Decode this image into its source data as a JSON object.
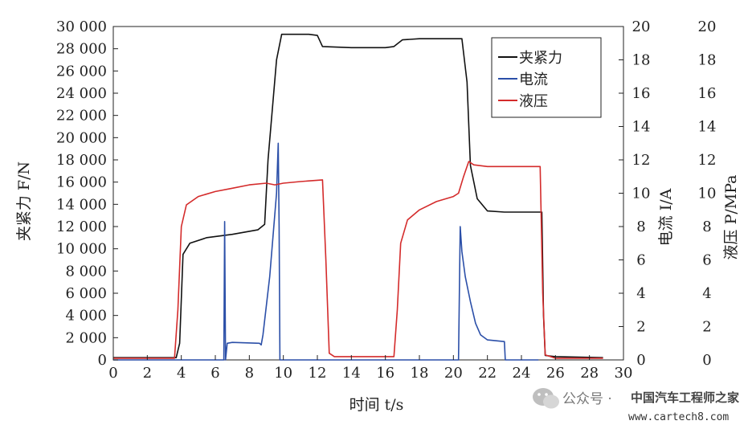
{
  "chart_data": {
    "type": "line",
    "xlabel": "时间 t/s",
    "ylabel_left": "夹紧力 F/N",
    "ylabel_right1": "电流 I/A",
    "ylabel_right2": "液压 P/MPa",
    "xlim": [
      0,
      30
    ],
    "ylim_left": [
      0,
      30000
    ],
    "ylim_right1": [
      0,
      20
    ],
    "ylim_right2": [
      0,
      20
    ],
    "xticks": [
      "0",
      "2",
      "4",
      "6",
      "8",
      "10",
      "12",
      "14",
      "16",
      "18",
      "20",
      "22",
      "24",
      "26",
      "28",
      "30"
    ],
    "yticks_left": [
      "0",
      "2 000",
      "4 000",
      "6 000",
      "8 000",
      "10 000",
      "12 000",
      "14 000",
      "16 000",
      "18 000",
      "20 000",
      "22 000",
      "24 000",
      "26 000",
      "28 000",
      "30 000"
    ],
    "yticks_right1": [
      "0",
      "2",
      "4",
      "6",
      "8",
      "10",
      "12",
      "14",
      "16",
      "18",
      "20"
    ],
    "yticks_right2": [
      "0",
      "2",
      "4",
      "6",
      "8",
      "10",
      "12",
      "14",
      "16",
      "18",
      "20"
    ],
    "grid": false,
    "legend": "top-right",
    "series": [
      {
        "name": "夹紧力",
        "color": "#111111",
        "axis": "left",
        "points": [
          [
            0,
            200
          ],
          [
            3.7,
            200
          ],
          [
            3.9,
            1500
          ],
          [
            4.1,
            9500
          ],
          [
            4.5,
            10500
          ],
          [
            5.5,
            11000
          ],
          [
            7,
            11300
          ],
          [
            8.5,
            11700
          ],
          [
            8.9,
            12200
          ],
          [
            9.1,
            18000
          ],
          [
            9.6,
            27000
          ],
          [
            9.9,
            29300
          ],
          [
            11.5,
            29300
          ],
          [
            12,
            29200
          ],
          [
            12.3,
            28200
          ],
          [
            14,
            28100
          ],
          [
            15,
            28100
          ],
          [
            16,
            28100
          ],
          [
            16.5,
            28200
          ],
          [
            17,
            28800
          ],
          [
            18,
            28900
          ],
          [
            19,
            28900
          ],
          [
            20.5,
            28900
          ],
          [
            20.8,
            25000
          ],
          [
            21,
            17500
          ],
          [
            21.4,
            14500
          ],
          [
            22,
            13400
          ],
          [
            23,
            13300
          ],
          [
            25.2,
            13300
          ],
          [
            25.3,
            4000
          ],
          [
            25.4,
            400
          ],
          [
            26,
            300
          ],
          [
            28.8,
            200
          ]
        ]
      },
      {
        "name": "电流",
        "color": "#2b4fa8",
        "axis": "right1",
        "points": [
          [
            0,
            0
          ],
          [
            6.5,
            0
          ],
          [
            6.55,
            8.3
          ],
          [
            6.6,
            0
          ],
          [
            6.7,
            1
          ],
          [
            7,
            1.05
          ],
          [
            8.6,
            1
          ],
          [
            8.7,
            0.9
          ],
          [
            8.8,
            1.5
          ],
          [
            9.2,
            5
          ],
          [
            9.6,
            10
          ],
          [
            9.7,
            13
          ],
          [
            9.75,
            8
          ],
          [
            9.8,
            0
          ],
          [
            20.3,
            0
          ],
          [
            20.4,
            8
          ],
          [
            20.5,
            6.5
          ],
          [
            20.7,
            5
          ],
          [
            21,
            3.5
          ],
          [
            21.3,
            2.2
          ],
          [
            21.6,
            1.5
          ],
          [
            22,
            1.2
          ],
          [
            23,
            1.1
          ],
          [
            23.05,
            0
          ],
          [
            25,
            0
          ]
        ]
      },
      {
        "name": "液压",
        "color": "#d42b2b",
        "axis": "right2",
        "points": [
          [
            0,
            0.1
          ],
          [
            3.6,
            0.1
          ],
          [
            3.8,
            3
          ],
          [
            4,
            8
          ],
          [
            4.3,
            9.3
          ],
          [
            5,
            9.8
          ],
          [
            6,
            10.1
          ],
          [
            7,
            10.3
          ],
          [
            8,
            10.5
          ],
          [
            9,
            10.6
          ],
          [
            9.5,
            10.5
          ],
          [
            10,
            10.6
          ],
          [
            11,
            10.7
          ],
          [
            12.3,
            10.8
          ],
          [
            12.5,
            6
          ],
          [
            12.7,
            0.4
          ],
          [
            13,
            0.2
          ],
          [
            16.5,
            0.2
          ],
          [
            16.7,
            3
          ],
          [
            16.9,
            7
          ],
          [
            17.3,
            8.4
          ],
          [
            18,
            9
          ],
          [
            19,
            9.5
          ],
          [
            20,
            9.8
          ],
          [
            20.3,
            10
          ],
          [
            20.6,
            11
          ],
          [
            20.9,
            11.9
          ],
          [
            21.2,
            11.7
          ],
          [
            22,
            11.6
          ],
          [
            23,
            11.6
          ],
          [
            24,
            11.6
          ],
          [
            25.1,
            11.6
          ],
          [
            25.25,
            4
          ],
          [
            25.4,
            0.3
          ],
          [
            26,
            0.1
          ],
          [
            28.8,
            0.1
          ]
        ]
      }
    ]
  },
  "watermark": {
    "label": "公众号 · ",
    "brand": "中国汽车工程师之家",
    "url": "www.cartech8.com"
  }
}
